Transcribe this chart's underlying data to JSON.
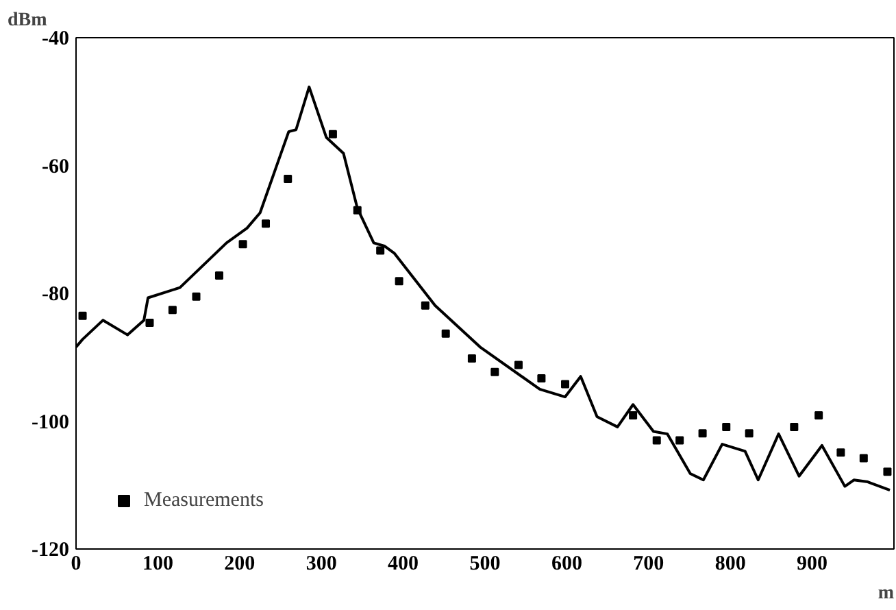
{
  "chart_data": {
    "type": "line",
    "xlabel": "m",
    "ylabel": "dBm",
    "xlim": [
      0,
      1000
    ],
    "ylim": [
      -120,
      -40
    ],
    "xticks": [
      0,
      100,
      200,
      300,
      400,
      500,
      600,
      700,
      800,
      900
    ],
    "yticks": [
      -120,
      -100,
      -80,
      -60,
      -40
    ],
    "grid": false,
    "legend": "bottom left",
    "series": [
      {
        "color": "#000000",
        "marker": "none",
        "line_style": "solid",
        "x": [
          0,
          8,
          33,
          63,
          83,
          88,
          127,
          184,
          209,
          225,
          244,
          260,
          269,
          285,
          306,
          327,
          344,
          364,
          377,
          389,
          439,
          494,
          567,
          598,
          617,
          637,
          662,
          681,
          706,
          723,
          751,
          767,
          790,
          818,
          834,
          859,
          884,
          912,
          940,
          951,
          968,
          995
        ],
        "values": [
          -88.4,
          -87.2,
          -84.2,
          -86.5,
          -84.2,
          -80.7,
          -79.1,
          -72.1,
          -69.8,
          -67.4,
          -60.5,
          -54.7,
          -54.4,
          -47.7,
          -55.6,
          -58.1,
          -66.7,
          -72.1,
          -72.6,
          -73.7,
          -81.9,
          -88.4,
          -95.0,
          -96.2,
          -93.0,
          -99.3,
          -100.9,
          -97.4,
          -101.6,
          -102.0,
          -108.2,
          -109.2,
          -103.6,
          -104.7,
          -109.2,
          -102.0,
          -108.6,
          -103.8,
          -110.2,
          -109.2,
          -109.5,
          -110.8
        ]
      },
      {
        "type": "scatter",
        "name": "Measurements",
        "color": "#000000",
        "marker": "square",
        "x": [
          8,
          90,
          118,
          147,
          175,
          204,
          232,
          259,
          314,
          344,
          372,
          395,
          427,
          452,
          484,
          512,
          541,
          569,
          598,
          681,
          710,
          738,
          766,
          795,
          823,
          878,
          908,
          935,
          963,
          992
        ],
        "values": [
          -83.5,
          -84.6,
          -82.6,
          -80.5,
          -77.2,
          -72.3,
          -69.1,
          -62.1,
          -55.1,
          -67,
          -73.3,
          -78.1,
          -81.9,
          -86.3,
          -90.2,
          -92.3,
          -91.2,
          -93.3,
          -94.2,
          -99.1,
          -103,
          -103,
          -101.9,
          -100.9,
          -101.9,
          -100.9,
          -99.1,
          -104.9,
          -105.8,
          -107.9
        ]
      }
    ]
  }
}
